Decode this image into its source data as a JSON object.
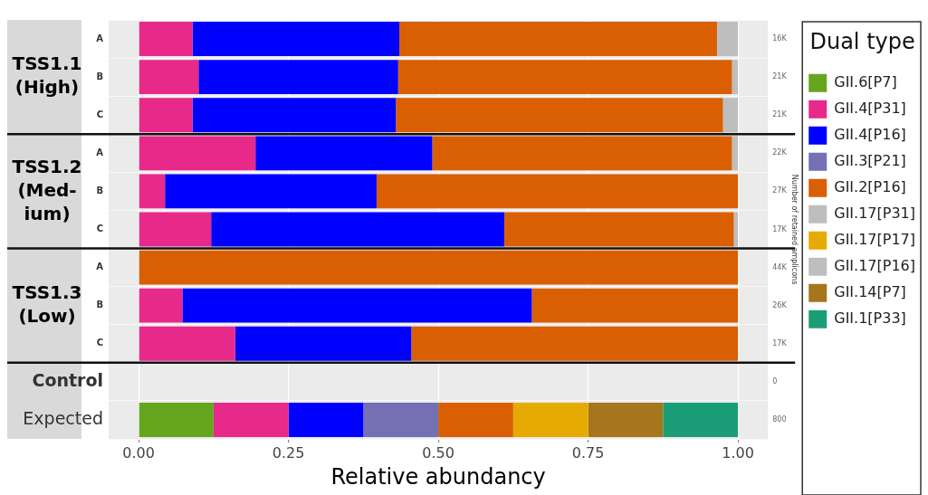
{
  "chart_data": {
    "type": "bar",
    "orientation": "horizontal",
    "stacked": true,
    "xlabel": "Relative abundancy",
    "y2label": "Number of retained amplicons",
    "legend_title": "Dual type",
    "categories": [
      "A",
      "B",
      "C",
      "A",
      "B",
      "C",
      "A",
      "B",
      "C",
      "Control",
      "Expected"
    ],
    "series": [
      {
        "name": "GII.6[P7]",
        "color": "#66a61e",
        "values": [
          null,
          null,
          null,
          null,
          null,
          null,
          null,
          null,
          null,
          null,
          0.125
        ]
      },
      {
        "name": "GII.4[P31]",
        "color": "#e7298a",
        "values": [
          0.09,
          0.1,
          0.09,
          0.195,
          0.044,
          0.121,
          null,
          0.073,
          0.161,
          null,
          0.125
        ]
      },
      {
        "name": "GII.4[P16]",
        "color": "#0000ff",
        "values": [
          0.345,
          0.333,
          0.339,
          0.295,
          0.353,
          0.489,
          null,
          0.583,
          0.294,
          null,
          0.125
        ]
      },
      {
        "name": "GII.3[P21]",
        "color": "#7570b3",
        "values": [
          null,
          null,
          null,
          null,
          null,
          null,
          null,
          null,
          null,
          null,
          0.125
        ]
      },
      {
        "name": "GII.2[P16]",
        "color": "#d95f02",
        "values": [
          0.53,
          0.557,
          0.546,
          0.5,
          0.603,
          0.383,
          1,
          0.344,
          0.545,
          null,
          0.125
        ]
      },
      {
        "name": "GII.17[P31]",
        "color": "#bebebe",
        "values": [
          0.035,
          0.01,
          0.025,
          0.01,
          null,
          0.007,
          null,
          null,
          null,
          null,
          null
        ]
      },
      {
        "name": "GII.17[P17]",
        "color": "#e6ab02",
        "values": [
          null,
          null,
          null,
          null,
          null,
          null,
          null,
          null,
          null,
          null,
          0.125
        ]
      },
      {
        "name": "GII.17[P16]",
        "color": "#bebebe",
        "values": [
          null,
          null,
          null,
          null,
          null,
          null,
          null,
          null,
          null,
          null,
          null
        ]
      },
      {
        "name": "GII.14[P7]",
        "color": "#a6761d",
        "values": [
          null,
          null,
          null,
          null,
          null,
          null,
          null,
          null,
          null,
          null,
          0.125
        ]
      },
      {
        "name": "GII.1[P33]",
        "color": "#1b9e77",
        "values": [
          null,
          null,
          null,
          null,
          null,
          null,
          null,
          null,
          null,
          null,
          0.125
        ]
      }
    ],
    "xlim": [
      -0.05,
      1.05
    ],
    "xticks": [
      {
        "value": 0,
        "label": "0.00"
      },
      {
        "value": 0.25,
        "label": "0.25"
      },
      {
        "value": 0.5,
        "label": "0.50"
      },
      {
        "value": 0.75,
        "label": "0.75"
      },
      {
        "value": 1,
        "label": "1.00"
      }
    ],
    "grid": true,
    "legend": "top right",
    "annotations": [
      "TSS1.1\n(High)",
      "TSS1.2\n(Med-\nium)",
      "TSS1.3\n(Low)",
      "16K",
      "21K",
      "21K",
      "22K",
      "27K",
      "17K",
      "44K",
      "26K",
      "17K",
      "0",
      "800"
    ]
  }
}
